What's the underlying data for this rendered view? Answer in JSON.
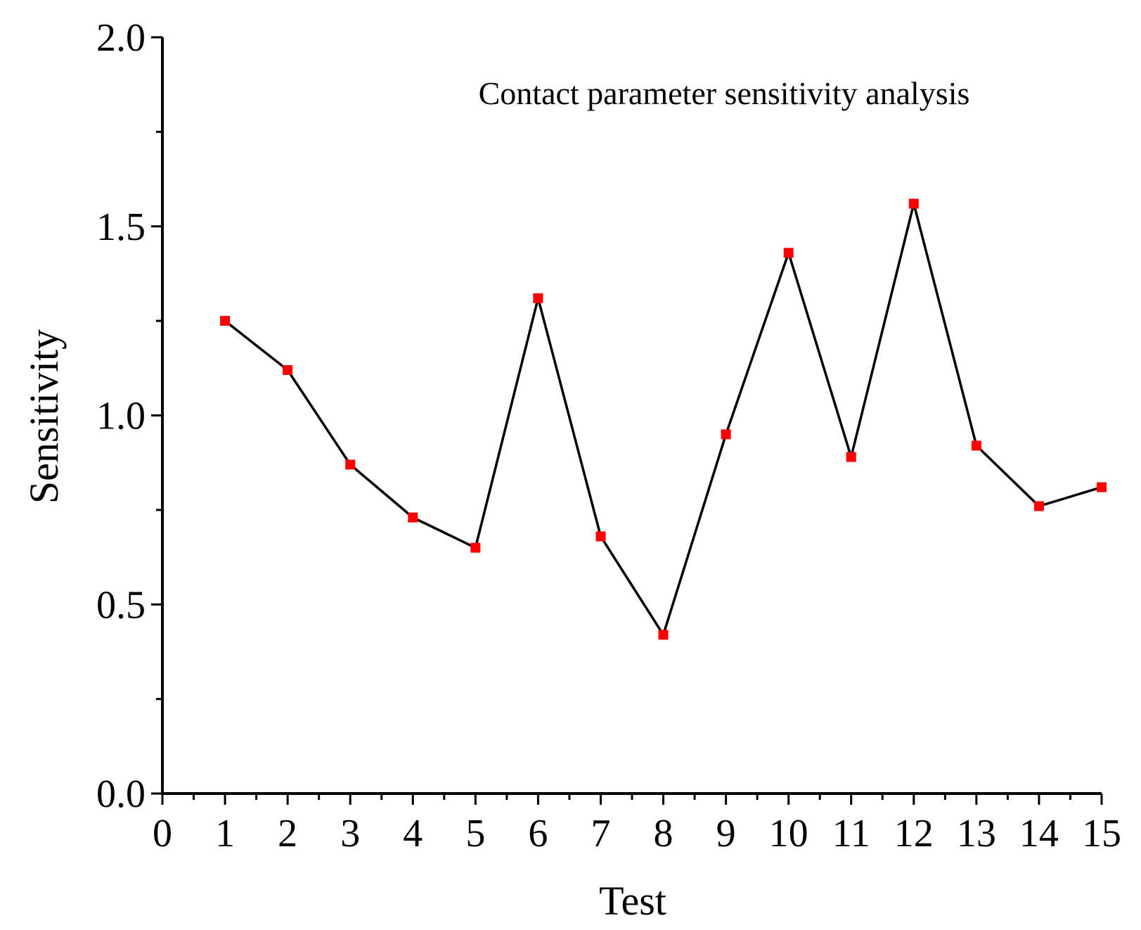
{
  "chart_data": {
    "type": "line",
    "title": "Contact parameter sensitivity analysis",
    "xlabel": "Test",
    "ylabel": "Sensitivity",
    "xlim": [
      0,
      15
    ],
    "ylim": [
      0,
      2.0
    ],
    "x_ticks": [
      0,
      1,
      2,
      3,
      4,
      5,
      6,
      7,
      8,
      9,
      10,
      11,
      12,
      13,
      14,
      15
    ],
    "x_tick_labels": [
      "0",
      "1",
      "2",
      "3",
      "4",
      "5",
      "6",
      "7",
      "8",
      "9",
      "10",
      "11",
      "12",
      "13",
      "14",
      "15"
    ],
    "y_ticks": [
      0.0,
      0.5,
      1.0,
      1.5,
      2.0
    ],
    "y_tick_labels": [
      "0.0",
      "0.5",
      "1.0",
      "1.5",
      "2.0"
    ],
    "grid": false,
    "legend": "none",
    "line_color": "#000000",
    "marker_color": "#ff0000",
    "marker_shape": "square",
    "series": [
      {
        "x": [
          1,
          2,
          3,
          4,
          5,
          6,
          7,
          8,
          9,
          10,
          11,
          12,
          13,
          14,
          15
        ],
        "values": [
          1.25,
          1.12,
          0.87,
          0.73,
          0.65,
          1.31,
          0.68,
          0.42,
          0.95,
          1.43,
          0.89,
          1.56,
          0.92,
          0.76,
          0.81
        ]
      }
    ]
  }
}
